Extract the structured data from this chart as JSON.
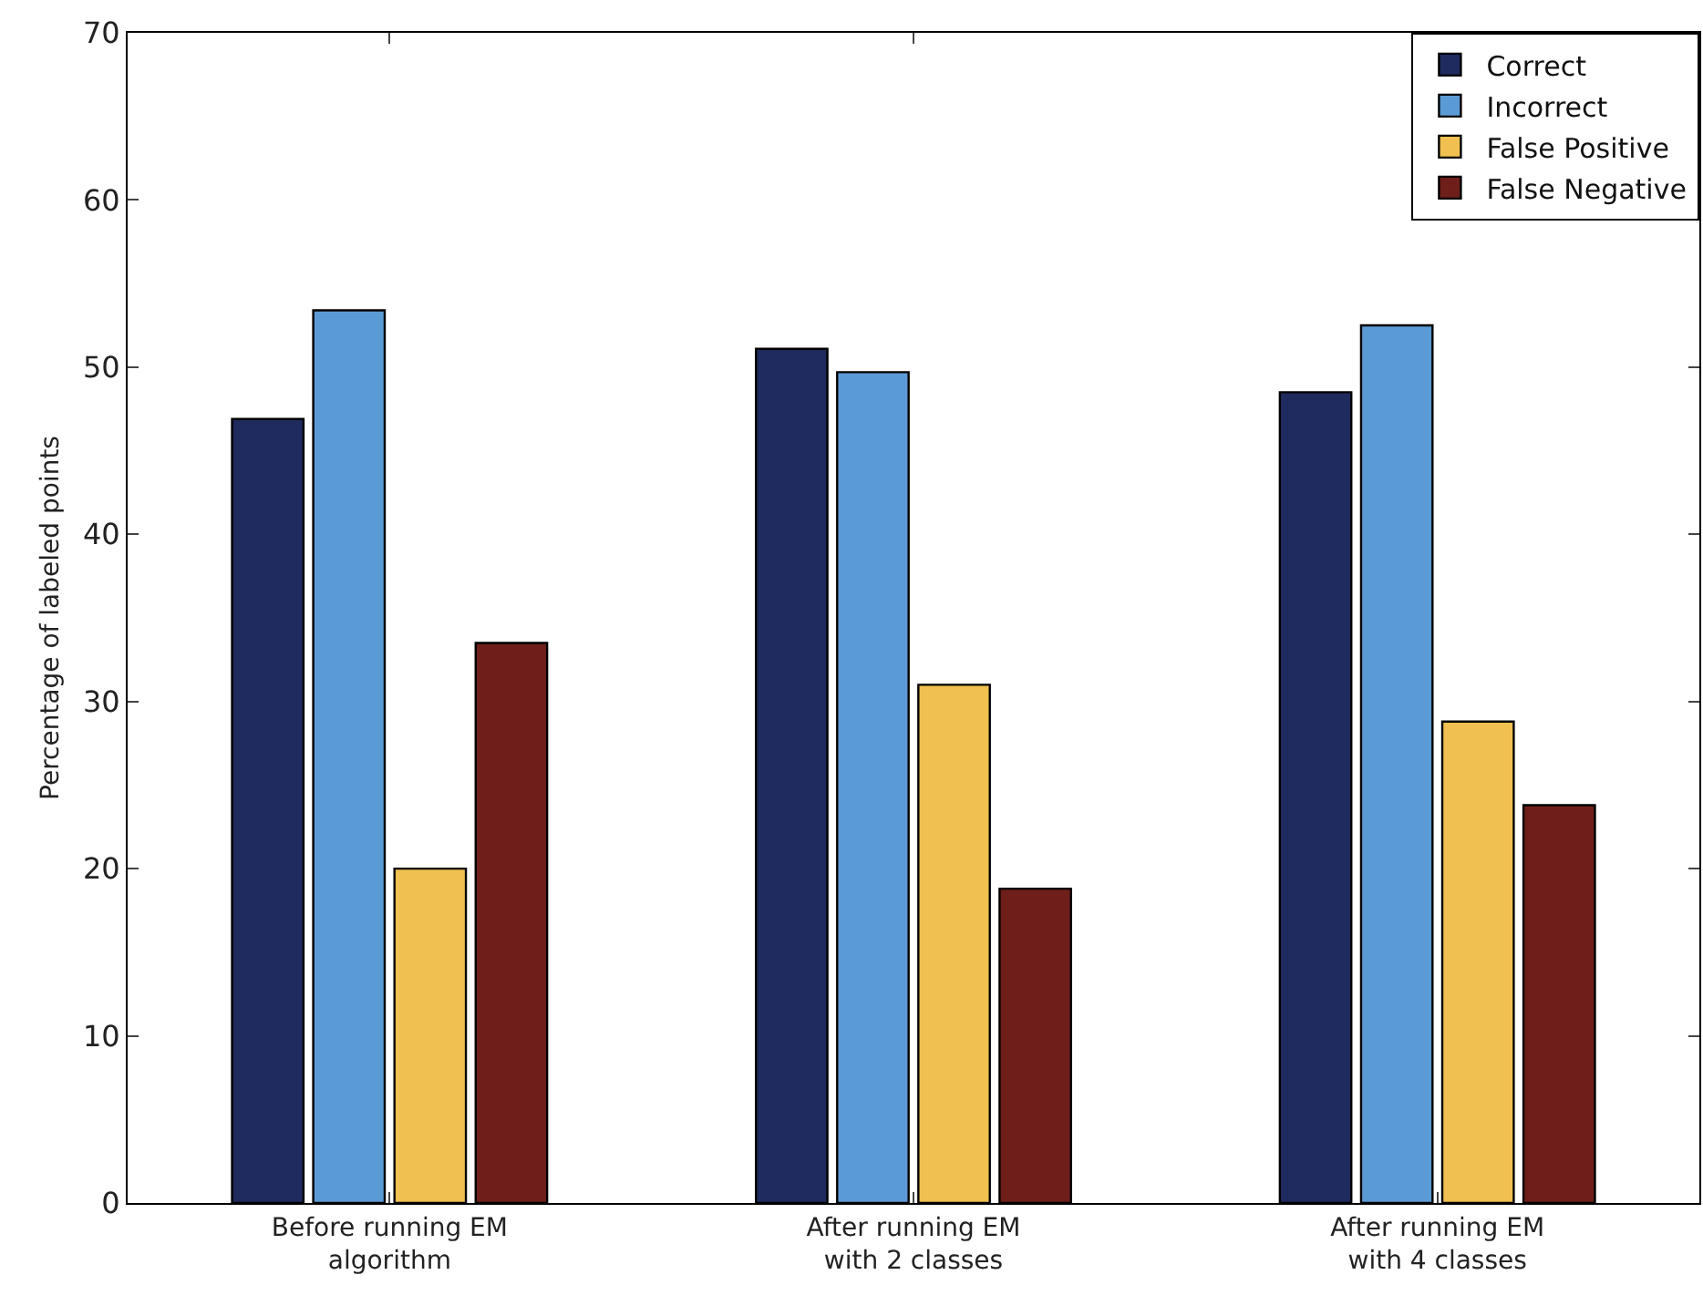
{
  "chart_data": {
    "type": "bar",
    "ylabel": "Percentage of labeled points",
    "categories": [
      "Before running EM\nalgorithm",
      "After running EM\nwith 2 classes",
      "After running EM\nwith 4 classes"
    ],
    "series": [
      {
        "name": "Correct",
        "color": "#1f2a5e",
        "values": [
          46.9,
          51.1,
          48.5
        ]
      },
      {
        "name": "Incorrect",
        "color": "#5b9bd5",
        "values": [
          53.4,
          49.7,
          52.5
        ]
      },
      {
        "name": "False Positive",
        "color": "#f0c050",
        "values": [
          20.0,
          31.0,
          28.8
        ]
      },
      {
        "name": "False Negative",
        "color": "#6e1f1a",
        "values": [
          33.5,
          18.8,
          23.8
        ]
      }
    ],
    "ylim": [
      0,
      70
    ],
    "yticks": [
      0,
      10,
      20,
      30,
      40,
      50,
      60,
      70
    ],
    "grid": false,
    "legend": "top right"
  }
}
